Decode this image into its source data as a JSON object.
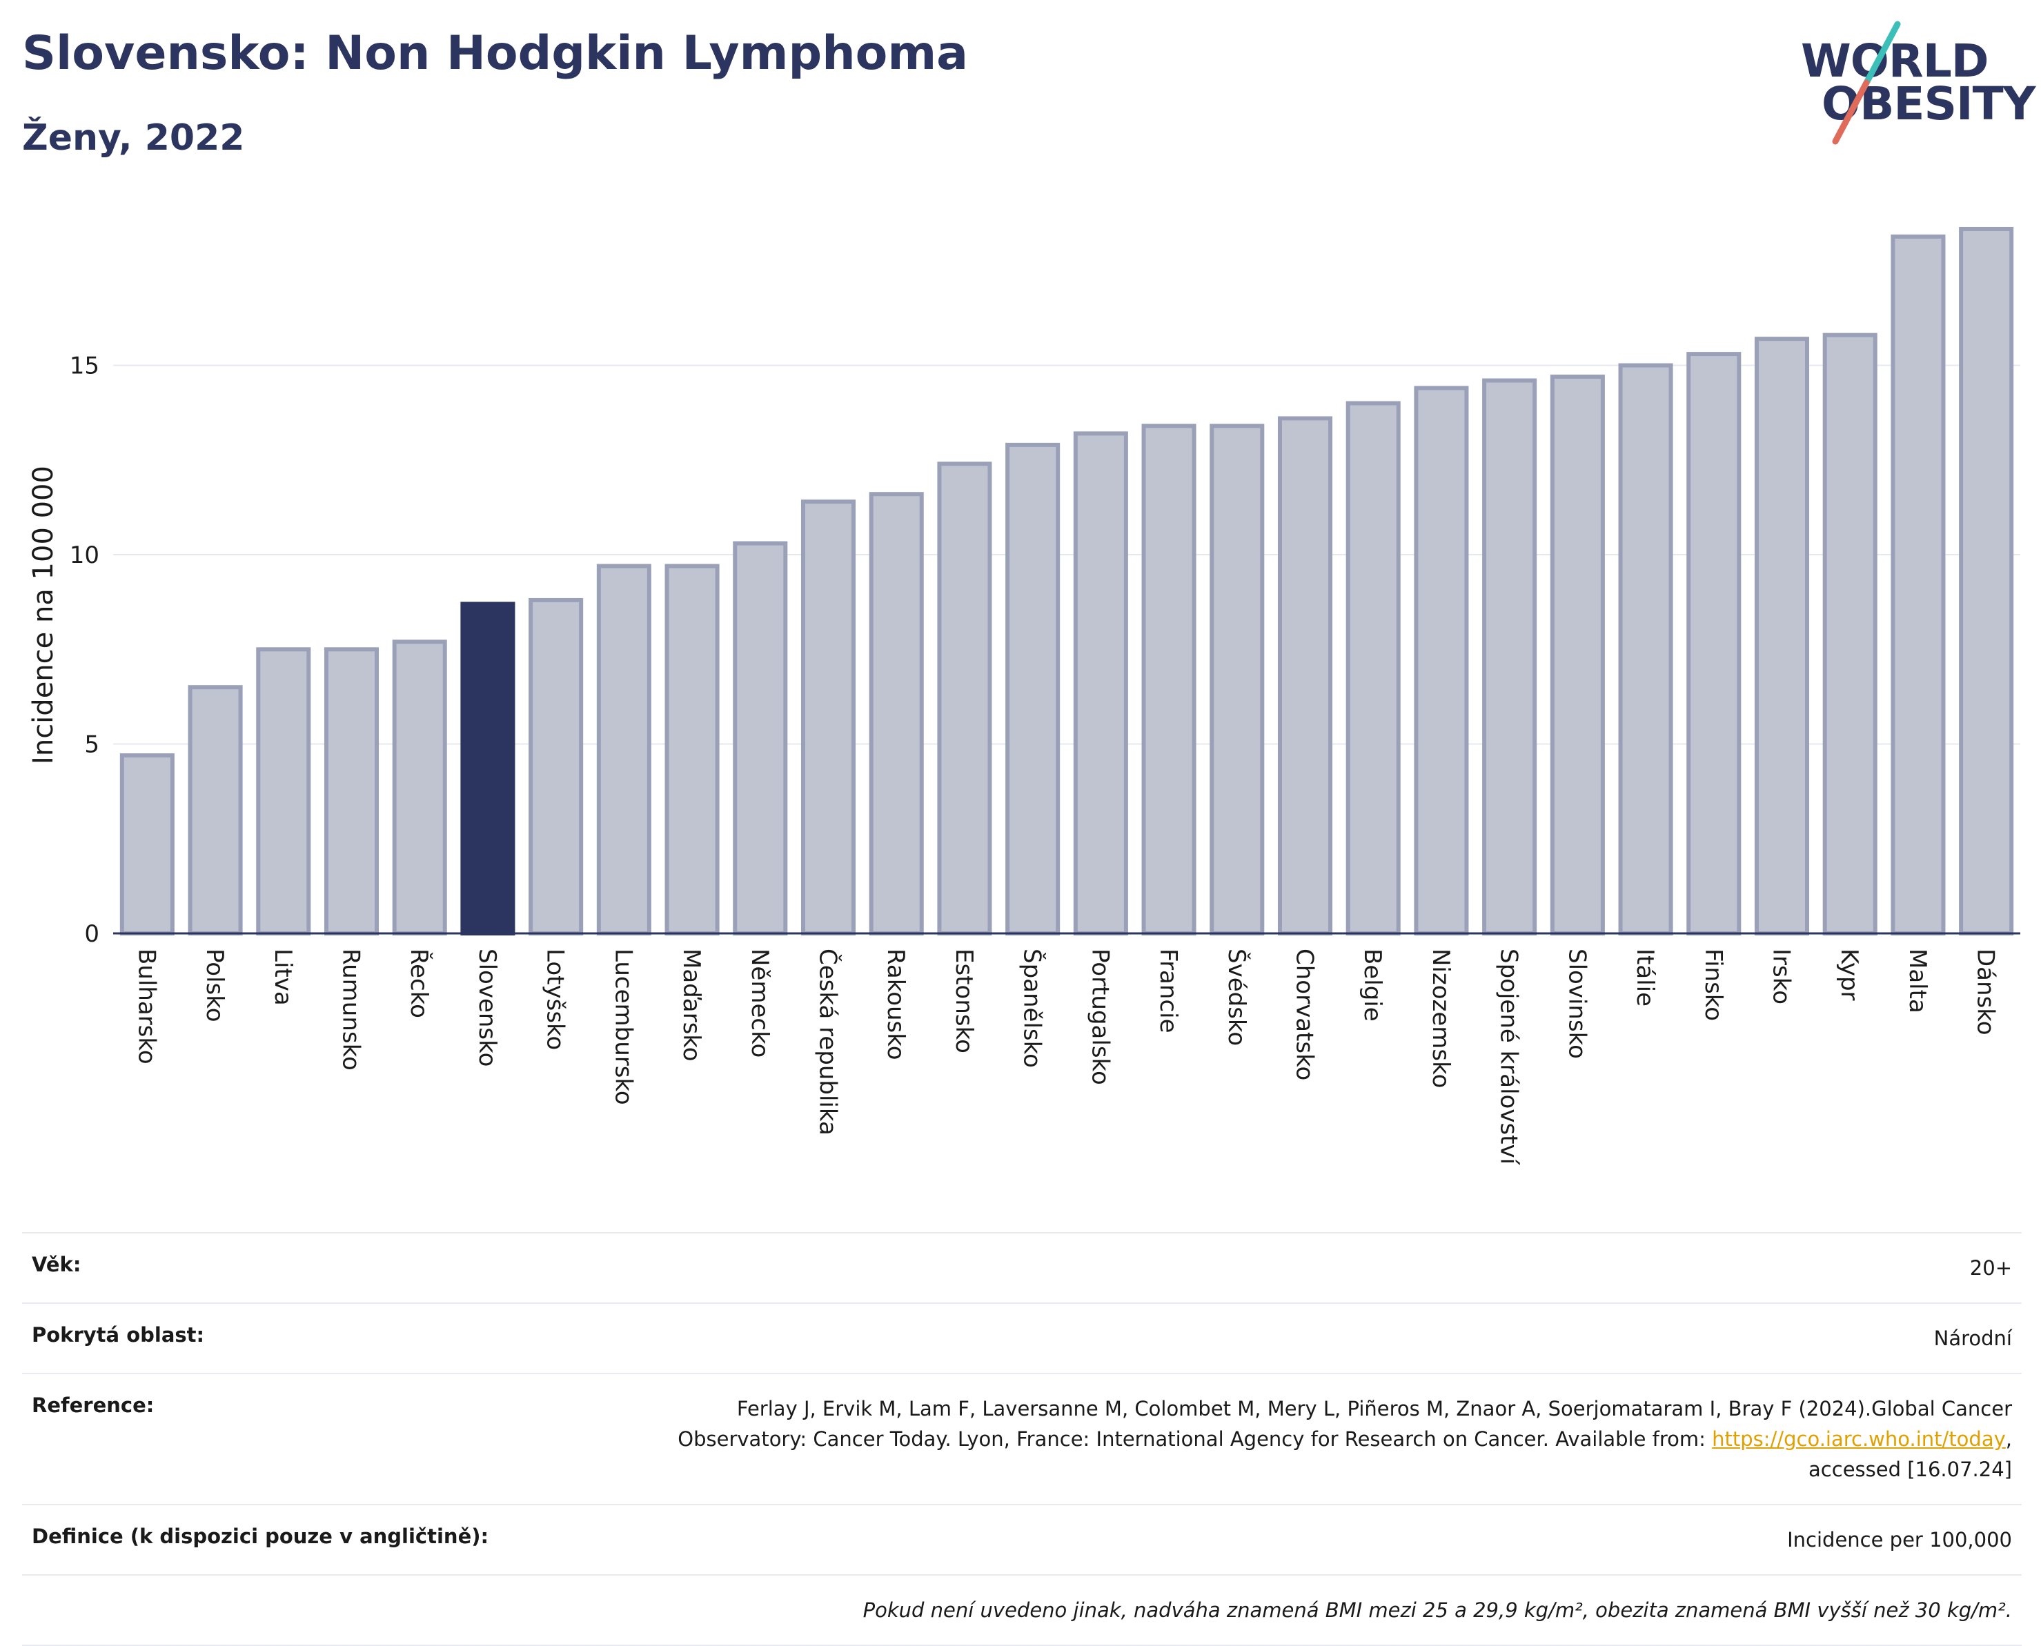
{
  "header": {
    "title": "Slovensko: Non Hodgkin Lymphoma",
    "subtitle": "Ženy, 2022",
    "logo_line1": "WORLD",
    "logo_line2": "OBESITY"
  },
  "colors": {
    "title": "#2b3560",
    "bar_default": "#c0c3d0",
    "bar_default_stroke": "#9aa0b8",
    "bar_highlight": "#2b3560",
    "grid": "#e6e8f0",
    "logo_teal": "#3bbfb8",
    "logo_red": "#e06b5a",
    "link": "#e0a100"
  },
  "chart_data": {
    "type": "bar",
    "title": "Slovensko: Non Hodgkin Lymphoma",
    "ylabel": "Incidence na 100 000",
    "xlabel": "",
    "ylim": [
      0,
      19
    ],
    "yticks": [
      0,
      5,
      10,
      15
    ],
    "grid": true,
    "highlight": "Slovensko",
    "categories": [
      "Bulharsko",
      "Polsko",
      "Litva",
      "Rumunsko",
      "Řecko",
      "Slovensko",
      "Lotyšsko",
      "Lucembursko",
      "Maďarsko",
      "Německo",
      "Česká republika",
      "Rakousko",
      "Estonsko",
      "Španělsko",
      "Portugalsko",
      "Francie",
      "Švédsko",
      "Chorvatsko",
      "Belgie",
      "Nizozemsko",
      "Spojené království",
      "Slovinsko",
      "Itálie",
      "Finsko",
      "Irsko",
      "Kypr",
      "Malta",
      "Dánsko"
    ],
    "values": [
      4.7,
      6.5,
      7.5,
      7.5,
      7.7,
      8.7,
      8.8,
      9.7,
      9.7,
      10.3,
      11.4,
      11.6,
      12.4,
      12.9,
      13.2,
      13.4,
      13.4,
      13.6,
      14.0,
      14.4,
      14.6,
      14.7,
      15.0,
      15.3,
      15.7,
      15.8,
      18.4,
      18.6
    ]
  },
  "info": {
    "age_label": "Věk:",
    "age_value": "20+",
    "area_label": "Pokrytá oblast:",
    "area_value": "Národní",
    "reference_label": "Reference:",
    "reference_text_1": "Ferlay J, Ervik M, Lam F, Laversanne M, Colombet M, Mery L, Piñeros M, Znaor A, Soerjomataram I, Bray F (2024).Global Cancer",
    "reference_text_2": "Observatory: Cancer Today. Lyon, France: International Agency for Research on Cancer. Available from: ",
    "reference_link": "https://gco.iarc.who.int/today",
    "reference_text_3": ",",
    "reference_text_4": "accessed [16.07.24]",
    "definition_label": "Definice (k dispozici pouze v angličtině):",
    "definition_value": "Incidence per 100,000",
    "note": "Pokud není uvedeno jinak, nadváha znamená BMI mezi 25 a 29,9 kg/m², obezita znamená BMI vyšší než 30 kg/m²."
  }
}
